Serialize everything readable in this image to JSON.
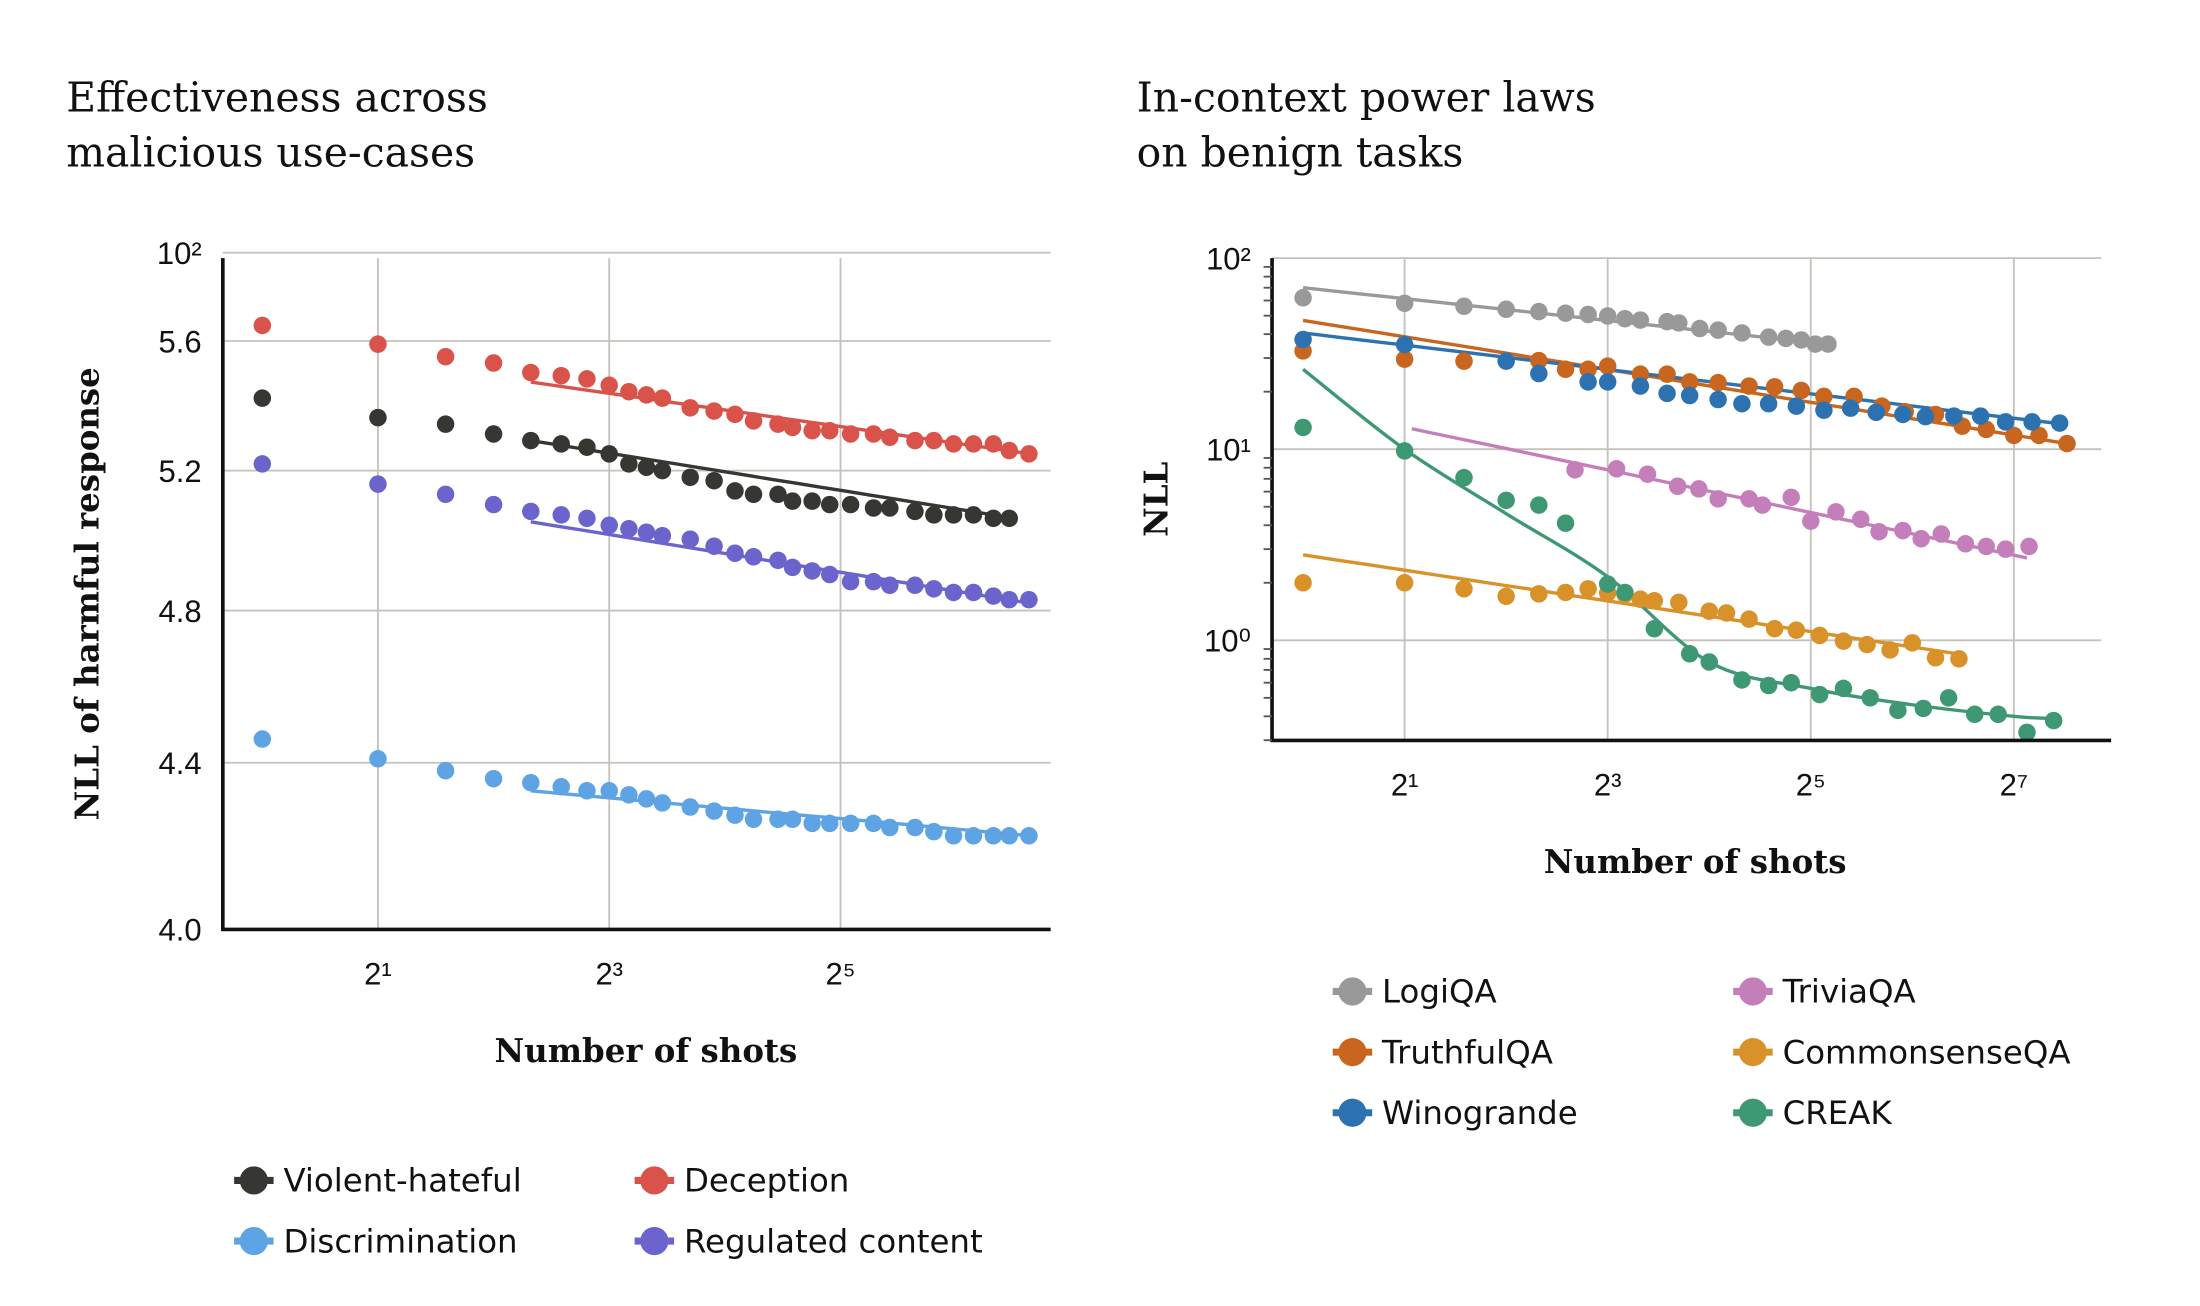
{
  "chart_data": [
    {
      "type": "scatter",
      "title": "Effectiveness across malicious use-cases",
      "title_lines": [
        "Effectiveness across",
        "malicious use-cases"
      ],
      "xlabel": "Number of shots",
      "ylabel": "NLL of harmful response",
      "xscale": "log2",
      "yscale": "log",
      "xlim": [
        0.79,
        143
      ],
      "ylim": [
        4.0,
        5.89
      ],
      "xticks": [
        2,
        8,
        32
      ],
      "xtick_labels": [
        "2¹",
        "2³",
        "2⁵"
      ],
      "yticks": [
        5.89,
        5.6,
        5.2,
        4.8,
        4.4,
        4.0
      ],
      "ytick_labels": [
        "10²",
        "5.6",
        "5.2",
        "4.8",
        "4.4",
        "4.0"
      ],
      "grid": true,
      "legend_position": "bottom",
      "series": [
        {
          "name": "Violent-hateful",
          "color": "#363633",
          "x": [
            1,
            2,
            3,
            4,
            5,
            6,
            7,
            8,
            9,
            10,
            11,
            13,
            15,
            17,
            19,
            22,
            24,
            27,
            30,
            34,
            39,
            43,
            50,
            56,
            63,
            71,
            80,
            88
          ],
          "y": [
            5.42,
            5.36,
            5.34,
            5.31,
            5.29,
            5.28,
            5.27,
            5.25,
            5.22,
            5.21,
            5.2,
            5.18,
            5.17,
            5.14,
            5.13,
            5.13,
            5.11,
            5.11,
            5.1,
            5.1,
            5.09,
            5.09,
            5.08,
            5.07,
            5.07,
            5.07,
            5.06,
            5.06
          ],
          "fit": {
            "x": [
              5,
              91
            ],
            "y": [
              5.29,
              5.06
            ]
          }
        },
        {
          "name": "Deception",
          "color": "#d9534a",
          "x": [
            1,
            2,
            3,
            4,
            5,
            6,
            7,
            8,
            9,
            10,
            11,
            13,
            15,
            17,
            19,
            22,
            24,
            27,
            30,
            34,
            39,
            43,
            50,
            56,
            63,
            71,
            80,
            88,
            99
          ],
          "y": [
            5.65,
            5.59,
            5.55,
            5.53,
            5.5,
            5.49,
            5.48,
            5.46,
            5.44,
            5.43,
            5.42,
            5.39,
            5.38,
            5.37,
            5.35,
            5.34,
            5.33,
            5.32,
            5.32,
            5.31,
            5.31,
            5.3,
            5.29,
            5.29,
            5.28,
            5.28,
            5.28,
            5.26,
            5.25
          ],
          "fit": {
            "x": [
              5,
              100
            ],
            "y": [
              5.47,
              5.25
            ]
          }
        },
        {
          "name": "Discrimination",
          "color": "#5ea3e4",
          "x": [
            1,
            2,
            3,
            4,
            5,
            6,
            7,
            8,
            9,
            10,
            11,
            13,
            15,
            17,
            19,
            22,
            24,
            27,
            30,
            34,
            39,
            43,
            50,
            56,
            63,
            71,
            80,
            88,
            99
          ],
          "y": [
            4.46,
            4.41,
            4.38,
            4.36,
            4.35,
            4.34,
            4.33,
            4.33,
            4.32,
            4.31,
            4.3,
            4.29,
            4.28,
            4.27,
            4.26,
            4.26,
            4.26,
            4.25,
            4.25,
            4.25,
            4.25,
            4.24,
            4.24,
            4.23,
            4.22,
            4.22,
            4.22,
            4.22,
            4.22
          ],
          "fit": {
            "x": [
              5,
              100
            ],
            "y": [
              4.33,
              4.22
            ]
          }
        },
        {
          "name": "Regulated content",
          "color": "#6a64cc",
          "x": [
            1,
            2,
            3,
            4,
            5,
            6,
            7,
            8,
            9,
            10,
            11,
            13,
            15,
            17,
            19,
            22,
            24,
            27,
            30,
            34,
            39,
            43,
            50,
            56,
            63,
            71,
            80,
            88,
            99
          ],
          "y": [
            5.22,
            5.16,
            5.13,
            5.1,
            5.08,
            5.07,
            5.06,
            5.04,
            5.03,
            5.02,
            5.01,
            5.0,
            4.98,
            4.96,
            4.95,
            4.94,
            4.92,
            4.91,
            4.9,
            4.88,
            4.88,
            4.87,
            4.87,
            4.86,
            4.85,
            4.85,
            4.84,
            4.83,
            4.83
          ],
          "fit": {
            "x": [
              5,
              100
            ],
            "y": [
              5.05,
              4.82
            ]
          }
        }
      ]
    },
    {
      "type": "scatter",
      "title": "In-context power laws on benign tasks",
      "title_lines": [
        "In-context power laws",
        "on benign tasks"
      ],
      "xlabel": "Number of shots",
      "ylabel": "NLL",
      "xscale": "log2",
      "yscale": "log10",
      "xlim": [
        0.81,
        249
      ],
      "ylim": [
        0.3,
        100
      ],
      "xticks": [
        2,
        8,
        32,
        128
      ],
      "xtick_labels": [
        "2¹",
        "2³",
        "2⁵",
        "2⁷"
      ],
      "yticks": [
        100,
        10,
        1
      ],
      "ytick_labels": [
        "10²",
        "10¹",
        "10⁰"
      ],
      "grid": true,
      "legend_position": "bottom",
      "series": [
        {
          "name": "LogiQA",
          "color": "#999999",
          "x": [
            1,
            2,
            3,
            4,
            5,
            6,
            7,
            8,
            9,
            10,
            12,
            13,
            15,
            17,
            20,
            24,
            27,
            30,
            33,
            36
          ],
          "y": [
            62,
            58,
            56,
            54,
            52.5,
            51.5,
            50.7,
            49.8,
            48.2,
            47.4,
            46.5,
            45.8,
            42.8,
            42,
            40.6,
            38.6,
            38,
            37.3,
            35.5,
            35.5
          ],
          "fit": {
            "x": [
              1,
              36
            ],
            "y": [
              70,
              35.5
            ]
          }
        },
        {
          "name": "TruthfulQA",
          "color": "#c8651e",
          "x": [
            1,
            2,
            3,
            5,
            6,
            7,
            8,
            10,
            12,
            14,
            17,
            21,
            25,
            30,
            35,
            43,
            52,
            61,
            75,
            90,
            106,
            128,
            152,
            184
          ],
          "y": [
            32.7,
            29.6,
            28.9,
            29.1,
            26.2,
            26.2,
            27.2,
            24.7,
            24.7,
            22.5,
            22.3,
            21.4,
            21.2,
            20.3,
            18.9,
            18.9,
            16.8,
            15.7,
            15.2,
            13.2,
            12.7,
            11.8,
            11.8,
            10.7
          ],
          "fit": {
            "x": [
              1,
              184
            ],
            "y": [
              47.2,
              10.7
            ]
          }
        },
        {
          "name": "Winogrande",
          "color": "#2d72b0",
          "x": [
            1,
            2,
            4,
            5,
            7,
            8,
            10,
            12,
            14,
            17,
            20,
            24,
            29,
            35,
            42,
            50,
            60,
            70,
            85,
            102,
            121,
            145,
            175
          ],
          "y": [
            37.5,
            35.3,
            28.9,
            24.9,
            22.5,
            22.5,
            21.4,
            19.6,
            19.1,
            18.2,
            17.3,
            17.3,
            16.8,
            16.0,
            16.4,
            15.6,
            15.2,
            14.8,
            14.9,
            14.9,
            13.9,
            13.9,
            13.7
          ],
          "fit": {
            "x": [
              1,
              175
            ],
            "y": [
              40.6,
              13.6
            ]
          }
        },
        {
          "name": "TriviaQA",
          "color": "#c47fbb",
          "x": [
            6.4,
            8.5,
            10.5,
            12.9,
            14.9,
            17,
            21,
            23,
            28,
            32,
            38,
            45,
            51,
            60,
            68,
            78,
            92,
            106,
            121,
            142
          ],
          "y": [
            7.8,
            7.9,
            7.4,
            6.4,
            6.2,
            5.5,
            5.5,
            5.1,
            5.6,
            4.2,
            4.7,
            4.3,
            3.7,
            3.75,
            3.4,
            3.6,
            3.2,
            3.1,
            3.0,
            3.1
          ],
          "fit": {
            "x": [
              2.1,
              140
            ],
            "y": [
              12.8,
              2.7
            ]
          }
        },
        {
          "name": "CommonsenseQA",
          "color": "#d9912a",
          "x": [
            1,
            2,
            3,
            4,
            5,
            6,
            7,
            8,
            9,
            10,
            11,
            13,
            16,
            18,
            21,
            25,
            29,
            34,
            40,
            47,
            55,
            64,
            75,
            88
          ],
          "y": [
            2.0,
            2.0,
            1.86,
            1.7,
            1.75,
            1.78,
            1.86,
            1.77,
            1.74,
            1.64,
            1.61,
            1.58,
            1.42,
            1.39,
            1.29,
            1.15,
            1.13,
            1.06,
            0.99,
            0.95,
            0.89,
            0.97,
            0.81,
            0.8
          ],
          "fit": {
            "x": [
              1,
              91
            ],
            "y": [
              2.8,
              0.84
            ]
          }
        },
        {
          "name": "CREAK",
          "color": "#3f9874",
          "x": [
            1,
            2,
            3,
            4,
            5,
            6,
            8,
            9,
            11,
            14,
            16,
            20,
            24,
            28,
            34,
            40,
            48,
            58,
            69,
            82,
            98,
            115,
            140,
            168
          ],
          "y": [
            13.0,
            9.8,
            7.1,
            5.4,
            5.1,
            4.1,
            1.97,
            1.78,
            1.15,
            0.85,
            0.77,
            0.62,
            0.58,
            0.6,
            0.52,
            0.56,
            0.5,
            0.43,
            0.44,
            0.5,
            0.41,
            0.41,
            0.33,
            0.38
          ],
          "fit": {
            "x": [
              1,
              2,
              4,
              8,
              16,
              32,
              64,
              128,
              168
            ],
            "y": [
              26.2,
              10,
              4.6,
              2.15,
              0.77,
              0.56,
              0.46,
              0.4,
              0.39
            ]
          }
        }
      ]
    }
  ]
}
